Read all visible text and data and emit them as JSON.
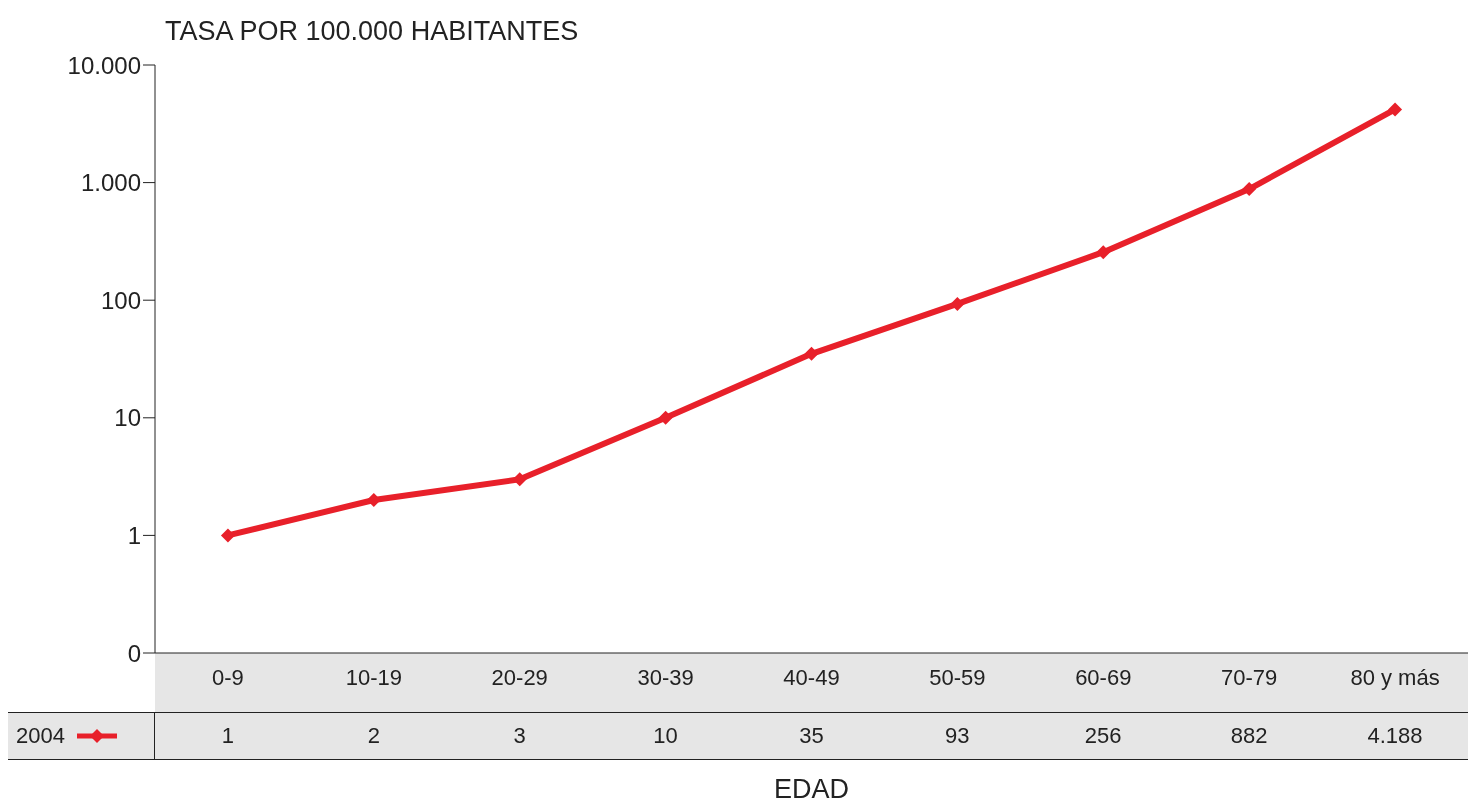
{
  "chart_data": {
    "type": "line",
    "ylabel": "TASA POR 100.000 HABITANTES",
    "xlabel": "EDAD",
    "categories": [
      "0-9",
      "10-19",
      "20-29",
      "30-39",
      "40-49",
      "50-59",
      "60-69",
      "70-79",
      "80 y más"
    ],
    "series": [
      {
        "name": "2004",
        "color": "#e8202a",
        "values": [
          1,
          2,
          3,
          10,
          35,
          93,
          256,
          882,
          4188
        ],
        "value_labels": [
          "1",
          "2",
          "3",
          "10",
          "35",
          "93",
          "256",
          "882",
          "4.188"
        ]
      }
    ],
    "log": true,
    "ylim": [
      0.1,
      10000
    ],
    "yticks": [
      {
        "value": 0.1,
        "label": "0"
      },
      1,
      10,
      100,
      {
        "value": 1000,
        "label": "1.000"
      },
      {
        "value": 10000,
        "label": "10.000"
      }
    ],
    "grid": false,
    "legend": "bottom left",
    "marker": "diamond",
    "line_style": "solid"
  }
}
